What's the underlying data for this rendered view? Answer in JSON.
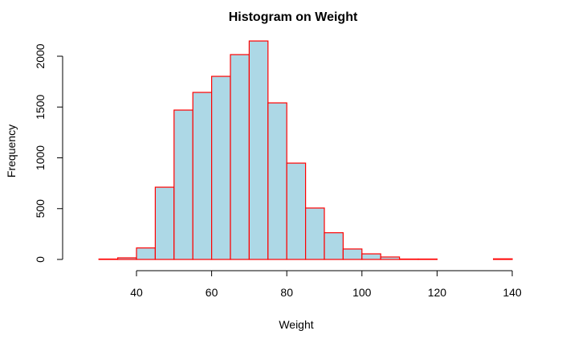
{
  "chart_data": {
    "type": "bar",
    "title": "Histogram on Weight",
    "xlabel": "Weight",
    "ylabel": "Frequency",
    "bin_edges": [
      25,
      30,
      35,
      40,
      45,
      50,
      55,
      60,
      65,
      70,
      75,
      80,
      85,
      90,
      95,
      100,
      105,
      110,
      115,
      120,
      125,
      130,
      135,
      140
    ],
    "values": [
      0,
      4,
      16,
      113,
      711,
      1470,
      1644,
      1802,
      2016,
      2150,
      1541,
      948,
      506,
      263,
      103,
      55,
      24,
      4,
      4,
      0,
      0,
      0,
      6
    ],
    "xticks": [
      "40",
      "60",
      "80",
      "100",
      "120",
      "140"
    ],
    "yticks": [
      "0",
      "500",
      "1000",
      "1500",
      "2000"
    ],
    "xlim": [
      40,
      140
    ],
    "ylim": [
      0,
      2000
    ],
    "grid": false,
    "colors": {
      "fill": "#add8e6",
      "border": "#ff0000"
    }
  }
}
